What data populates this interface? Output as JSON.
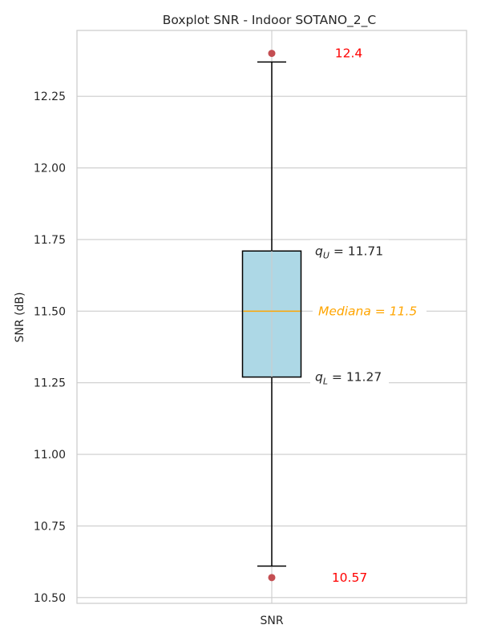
{
  "chart_data": {
    "type": "boxplot",
    "title": "Boxplot SNR - Indoor SOTANO_2_C",
    "xlabel": "",
    "ylabel": "SNR (dB)",
    "categories": [
      "SNR"
    ],
    "ylim": [
      10.48,
      12.48
    ],
    "yticks": [
      10.5,
      10.75,
      11.0,
      11.25,
      11.5,
      11.75,
      12.0,
      12.25
    ],
    "ytick_labels": [
      "10.50",
      "10.75",
      "11.00",
      "11.25",
      "11.50",
      "11.75",
      "12.00",
      "12.25"
    ],
    "grid": true,
    "box": {
      "q1": 11.27,
      "median": 11.5,
      "q3": 11.71,
      "whisker_low": 10.61,
      "whisker_high": 12.37,
      "outliers": [
        12.4,
        10.57
      ]
    },
    "colors": {
      "box_fill": "#add8e6",
      "median_line": "#ffa500",
      "outlier": "#c44e52",
      "extreme_label": "#ff0000",
      "grid": "#cccccc",
      "spine": "#cccccc"
    },
    "annotations": {
      "max_label": "12.4",
      "min_label": "10.57",
      "q_upper": {
        "symbol": "q",
        "sub": "U",
        "text": " = 11.71"
      },
      "median": {
        "text": "Mediana = 11.5"
      },
      "q_lower": {
        "symbol": "q",
        "sub": "L",
        "text": " = 11.27"
      }
    }
  }
}
